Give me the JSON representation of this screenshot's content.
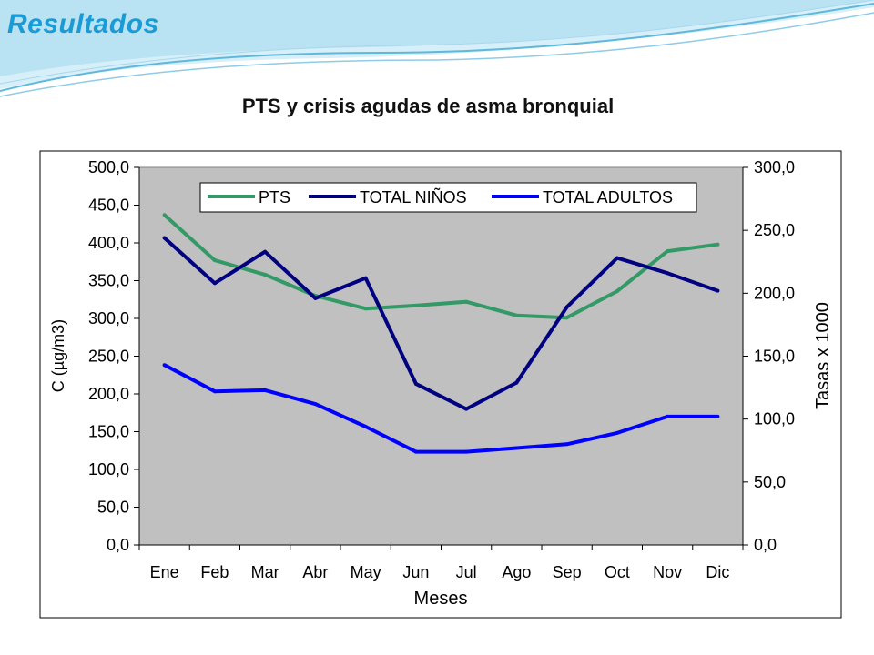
{
  "slide": {
    "heading": "Resultados",
    "accent_color": "#1a9bd6"
  },
  "chart_data": {
    "type": "line",
    "title": "PTS y crisis agudas de asma bronquial",
    "xlabel": "Meses",
    "ylabel_left": "C (µg/m3)",
    "ylabel_right": "Tasas x 1000",
    "categories": [
      "Ene",
      "Feb",
      "Mar",
      "Abr",
      "May",
      "Jun",
      "Jul",
      "Ago",
      "Sep",
      "Oct",
      "Nov",
      "Dic"
    ],
    "y_left": {
      "range": [
        0,
        500
      ],
      "ticks": [
        "0,0",
        "50,0",
        "100,0",
        "150,0",
        "200,0",
        "250,0",
        "300,0",
        "350,0",
        "400,0",
        "450,0",
        "500,0"
      ]
    },
    "y_right": {
      "range": [
        0,
        300
      ],
      "ticks": [
        "0,0",
        "50,0",
        "100,0",
        "150,0",
        "200,0",
        "250,0",
        "300,0"
      ]
    },
    "plot_background": "#c0c0c0",
    "grid": false,
    "legend_position": "top",
    "series": [
      {
        "name": "PTS",
        "axis": "left",
        "color": "#339966",
        "values": [
          437,
          377,
          358,
          330,
          313,
          317,
          322,
          304,
          301,
          336,
          389,
          398
        ]
      },
      {
        "name": "TOTAL NIÑOS",
        "axis": "right",
        "color": "#000080",
        "values": [
          244,
          208,
          233,
          196,
          212,
          128,
          108,
          129,
          189,
          228,
          216,
          202
        ]
      },
      {
        "name": "TOTAL ADULTOS",
        "axis": "right",
        "color": "#0000ff",
        "values": [
          143,
          122,
          123,
          112,
          94,
          74,
          74,
          77,
          80,
          89,
          102,
          102
        ]
      }
    ]
  }
}
